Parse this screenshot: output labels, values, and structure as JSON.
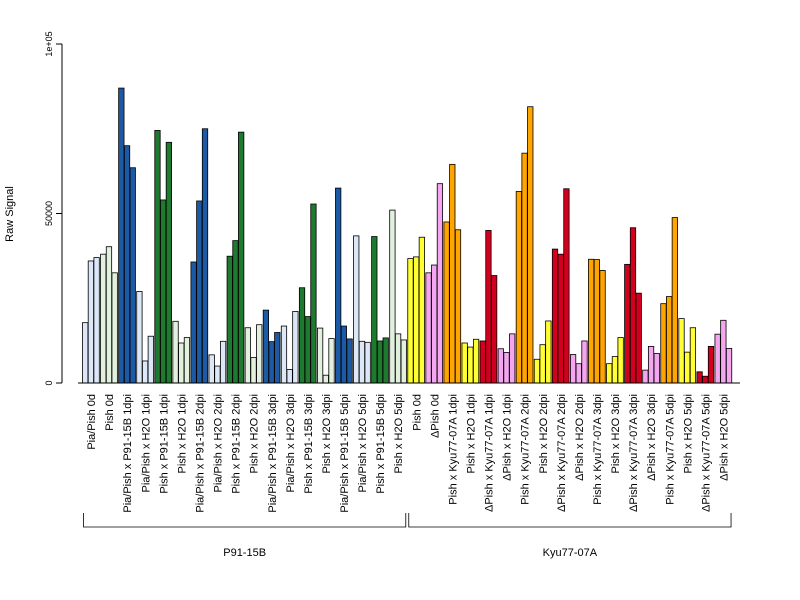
{
  "chart_data": {
    "type": "bar",
    "ylabel": "Raw Signal",
    "ylim": [
      0,
      100000
    ],
    "yticks": [
      {
        "value": 0,
        "label": "0"
      },
      {
        "value": 50000,
        "label": "50000"
      },
      {
        "value": 100000,
        "label": "1e+05"
      }
    ],
    "bars_per_group": 3,
    "categories": [
      "Pia/Pish 0d",
      "Pish 0d",
      "Pia/Pish x P91-15B 1dpi",
      "Pia/Pish x H2O 1dpi",
      "Pish x P91-15B 1dpi",
      "Pish x H2O 1dpi",
      "Pia/Pish x P91-15B 2dpi",
      "Pia/Pish x H2O 2dpi",
      "Pish x P91-15B 2dpi",
      "Pish x H2O 2dpi",
      "Pia/Pish x P91-15B 3dpi",
      "Pia/Pish x H2O 3dpi",
      "Pish x P91-15B 3dpi",
      "Pish x H2O 3dpi",
      "Pia/Pish x P91-15B 5dpi",
      "Pia/Pish x H2O 5dpi",
      "Pish x P91-15B 5dpi",
      "Pish x H2O 5dpi",
      "Pish 0d",
      "ΔPish 0d",
      "Pish x Kyu77-07A 1dpi",
      "Pish x H2O 1dpi",
      "ΔPish x Kyu77-07A 1dpi",
      "ΔPish x H2O 1dpi",
      "Pish x Kyu77-07A 2dpi",
      "Pish x H2O 2dpi",
      "ΔPish x Kyu77-07A 2dpi",
      "ΔPish x H2O 2dpi",
      "Pish x Kyu77-07A 3dpi",
      "Pish x H2O 3dpi",
      "ΔPish x Kyu77-07A 3dpi",
      "ΔPish x H2O 3dpi",
      "Pish x Kyu77-07A 5dpi",
      "Pish x H2O 5dpi",
      "ΔPish x Kyu77-07A 5dpi",
      "ΔPish x H2O 5dpi"
    ],
    "values": [
      [
        17800,
        36000,
        37000
      ],
      [
        38000,
        40200,
        32500
      ],
      [
        87000,
        70000,
        63500
      ],
      [
        27000,
        6500,
        13800
      ],
      [
        74500,
        54000,
        71000
      ],
      [
        18200,
        11800,
        13400
      ],
      [
        35700,
        53700,
        75000
      ],
      [
        8300,
        5000,
        12300
      ],
      [
        37400,
        42000,
        74000
      ],
      [
        16300,
        7500,
        17200
      ],
      [
        21500,
        12200,
        14900
      ],
      [
        16800,
        4000,
        21100
      ],
      [
        28100,
        19600,
        52800
      ],
      [
        16200,
        2300,
        13100
      ],
      [
        57500,
        16800,
        13000
      ],
      [
        43400,
        12300,
        12000
      ],
      [
        43200,
        12400,
        13300
      ],
      [
        51000,
        14500,
        12700
      ],
      [
        36700,
        37200,
        43000
      ],
      [
        32500,
        34800,
        58800
      ],
      [
        47500,
        64500,
        45200
      ],
      [
        11800,
        10600,
        12900
      ],
      [
        12400,
        45000,
        31700
      ],
      [
        10100,
        9000,
        14500
      ],
      [
        56500,
        67800,
        81500
      ],
      [
        7000,
        11300,
        18300
      ],
      [
        39500,
        38000,
        57300
      ],
      [
        8400,
        5700,
        12400
      ],
      [
        36500,
        36400,
        33200
      ],
      [
        5700,
        7800,
        13400
      ],
      [
        35000,
        45800,
        26500
      ],
      [
        3800,
        10800,
        8700
      ],
      [
        23400,
        25500,
        48800
      ],
      [
        19000,
        9100,
        16300
      ],
      [
        3300,
        2000,
        10800
      ],
      [
        14400,
        18500,
        10200
      ]
    ],
    "colors": [
      "#dce8f7",
      "#e2f1de",
      "#1d5aa6",
      "#dce8f7",
      "#1e7a2e",
      "#e2f1de",
      "#1d5aa6",
      "#dce8f7",
      "#1e7a2e",
      "#e2f1de",
      "#1d5aa6",
      "#dce8f7",
      "#1e7a2e",
      "#e2f1de",
      "#1d5aa6",
      "#dce8f7",
      "#1e7a2e",
      "#e2f1de",
      "#ffff33",
      "#f4a6f0",
      "#ffa500",
      "#ffff33",
      "#d2001e",
      "#f4a6f0",
      "#ffa500",
      "#ffff33",
      "#d2001e",
      "#f4a6f0",
      "#ffa500",
      "#ffff33",
      "#d2001e",
      "#f4a6f0",
      "#ffa500",
      "#ffff33",
      "#d2001e",
      "#f4a6f0"
    ],
    "groups": [
      {
        "label": "P91-15B",
        "from": 0,
        "to": 17
      },
      {
        "label": "Kyu77-07A",
        "from": 18,
        "to": 35
      }
    ],
    "grid": false
  }
}
